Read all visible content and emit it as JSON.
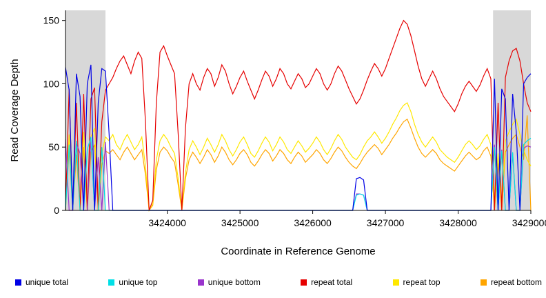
{
  "chart_data": {
    "type": "line",
    "title": "",
    "xlabel": "Coordinate in Reference Genome",
    "ylabel": "Read Coverage Depth",
    "xlim": [
      3422600,
      3429000
    ],
    "ylim": [
      0,
      158
    ],
    "grid": false,
    "legend_position": "bottom",
    "x_ticks": [
      {
        "value": 3424000,
        "label": "3424000"
      },
      {
        "value": 3425000,
        "label": "3425000"
      },
      {
        "value": 3426000,
        "label": "3426000"
      },
      {
        "value": 3427000,
        "label": "3427000"
      },
      {
        "value": 3428000,
        "label": "3428000"
      },
      {
        "value": 3429000,
        "label": "3429000"
      }
    ],
    "y_ticks": [
      {
        "value": 0,
        "label": "0"
      },
      {
        "value": 50,
        "label": "50"
      },
      {
        "value": 100,
        "label": "100"
      },
      {
        "value": 150,
        "label": "150"
      }
    ],
    "highlight_regions": [
      {
        "x0": 3422600,
        "x1": 3423150,
        "color": "#d8d8d8"
      },
      {
        "x0": 3428480,
        "x1": 3429000,
        "color": "#d8d8d8"
      }
    ],
    "x_start": 3422600,
    "x_step": 50,
    "draw_order": [
      5,
      4,
      3,
      2,
      1,
      0
    ],
    "series": [
      {
        "name": "unique total",
        "color": "#0000e6",
        "values": [
          113,
          95,
          0,
          108,
          90,
          0,
          100,
          115,
          0,
          85,
          112,
          110,
          60,
          0,
          0,
          0,
          0,
          0,
          0,
          0,
          0,
          0,
          0,
          0,
          0,
          0,
          0,
          0,
          0,
          0,
          0,
          0,
          0,
          0,
          0,
          0,
          0,
          0,
          0,
          0,
          0,
          0,
          0,
          0,
          0,
          0,
          0,
          0,
          0,
          0,
          0,
          0,
          0,
          0,
          0,
          0,
          0,
          0,
          0,
          0,
          0,
          0,
          0,
          0,
          0,
          0,
          0,
          0,
          0,
          0,
          0,
          0,
          0,
          0,
          0,
          0,
          0,
          0,
          0,
          0,
          25,
          26,
          24,
          0,
          0,
          0,
          0,
          0,
          0,
          0,
          0,
          0,
          0,
          0,
          0,
          0,
          0,
          0,
          0,
          0,
          0,
          0,
          0,
          0,
          0,
          0,
          0,
          0,
          0,
          0,
          0,
          0,
          0,
          0,
          0,
          0,
          0,
          0,
          104,
          0,
          96,
          88,
          0,
          92,
          62,
          0,
          100,
          105,
          108
        ]
      },
      {
        "name": "unique top",
        "color": "#00dfe6",
        "values": [
          0,
          52,
          0,
          55,
          0,
          0,
          48,
          58,
          0,
          0,
          50,
          0,
          0,
          0,
          0,
          0,
          0,
          0,
          0,
          0,
          0,
          0,
          0,
          0,
          0,
          0,
          0,
          0,
          0,
          0,
          0,
          0,
          0,
          0,
          0,
          0,
          0,
          0,
          0,
          0,
          0,
          0,
          0,
          0,
          0,
          0,
          0,
          0,
          0,
          0,
          0,
          0,
          0,
          0,
          0,
          0,
          0,
          0,
          0,
          0,
          0,
          0,
          0,
          0,
          0,
          0,
          0,
          0,
          0,
          0,
          0,
          0,
          0,
          0,
          0,
          0,
          0,
          0,
          0,
          0,
          12,
          13,
          12,
          0,
          0,
          0,
          0,
          0,
          0,
          0,
          0,
          0,
          0,
          0,
          0,
          0,
          0,
          0,
          0,
          0,
          0,
          0,
          0,
          0,
          0,
          0,
          0,
          0,
          0,
          0,
          0,
          0,
          0,
          0,
          0,
          0,
          0,
          0,
          50,
          0,
          47,
          0,
          0,
          46,
          0,
          0,
          52,
          55,
          57
        ]
      },
      {
        "name": "unique bottom",
        "color": "#9933cc",
        "values": [
          56,
          0,
          0,
          53,
          45,
          0,
          0,
          56,
          0,
          42,
          0,
          54,
          0,
          0,
          0,
          0,
          0,
          0,
          0,
          0,
          0,
          0,
          0,
          0,
          0,
          0,
          0,
          0,
          0,
          0,
          0,
          0,
          0,
          0,
          0,
          0,
          0,
          0,
          0,
          0,
          0,
          0,
          0,
          0,
          0,
          0,
          0,
          0,
          0,
          0,
          0,
          0,
          0,
          0,
          0,
          0,
          0,
          0,
          0,
          0,
          0,
          0,
          0,
          0,
          0,
          0,
          0,
          0,
          0,
          0,
          0,
          0,
          0,
          0,
          0,
          0,
          0,
          0,
          0,
          0,
          13,
          13,
          12,
          0,
          0,
          0,
          0,
          0,
          0,
          0,
          0,
          0,
          0,
          0,
          0,
          0,
          0,
          0,
          0,
          0,
          0,
          0,
          0,
          0,
          0,
          0,
          0,
          0,
          0,
          0,
          0,
          0,
          0,
          0,
          0,
          0,
          0,
          0,
          52,
          0,
          48,
          0,
          0,
          45,
          0,
          0,
          49,
          51,
          50
        ]
      },
      {
        "name": "repeat total",
        "color": "#e60000",
        "values": [
          0,
          96,
          0,
          85,
          0,
          92,
          0,
          88,
          97,
          0,
          70,
          95,
          100,
          105,
          112,
          118,
          122,
          115,
          108,
          118,
          125,
          120,
          70,
          0,
          8,
          85,
          125,
          130,
          122,
          115,
          108,
          60,
          0,
          65,
          100,
          108,
          100,
          95,
          105,
          112,
          108,
          98,
          105,
          115,
          110,
          100,
          92,
          98,
          105,
          110,
          102,
          95,
          88,
          95,
          103,
          110,
          106,
          98,
          104,
          112,
          108,
          100,
          96,
          102,
          108,
          104,
          97,
          100,
          106,
          112,
          108,
          100,
          95,
          100,
          108,
          114,
          110,
          103,
          96,
          90,
          84,
          88,
          95,
          103,
          110,
          116,
          112,
          106,
          112,
          120,
          128,
          136,
          144,
          150,
          147,
          138,
          126,
          114,
          104,
          98,
          104,
          110,
          104,
          96,
          90,
          86,
          82,
          78,
          84,
          92,
          98,
          102,
          98,
          94,
          99,
          106,
          112,
          104,
          0,
          85,
          0,
          105,
          118,
          126,
          128,
          118,
          100,
          85,
          78
        ]
      },
      {
        "name": "repeat top",
        "color": "#ffe800",
        "values": [
          0,
          60,
          0,
          55,
          0,
          62,
          0,
          58,
          65,
          0,
          45,
          58,
          55,
          60,
          52,
          48,
          55,
          60,
          54,
          48,
          52,
          58,
          35,
          0,
          5,
          40,
          55,
          60,
          56,
          50,
          45,
          25,
          0,
          30,
          48,
          55,
          50,
          44,
          50,
          57,
          52,
          46,
          52,
          60,
          55,
          48,
          43,
          48,
          54,
          58,
          52,
          45,
          42,
          47,
          53,
          58,
          54,
          47,
          52,
          58,
          54,
          48,
          45,
          50,
          55,
          51,
          46,
          49,
          53,
          58,
          54,
          48,
          44,
          49,
          55,
          60,
          56,
          50,
          46,
          42,
          40,
          44,
          50,
          55,
          58,
          62,
          58,
          53,
          57,
          62,
          68,
          73,
          79,
          83,
          85,
          78,
          68,
          60,
          54,
          50,
          54,
          58,
          54,
          48,
          45,
          42,
          40,
          38,
          42,
          47,
          52,
          55,
          52,
          48,
          51,
          56,
          60,
          52,
          0,
          45,
          0,
          55,
          62,
          68,
          72,
          60,
          48,
          40,
          35
        ]
      },
      {
        "name": "repeat bottom",
        "color": "#ffa500",
        "values": [
          0,
          48,
          0,
          44,
          0,
          50,
          0,
          46,
          52,
          0,
          36,
          47,
          45,
          48,
          44,
          40,
          46,
          50,
          45,
          40,
          44,
          48,
          28,
          0,
          4,
          32,
          46,
          50,
          47,
          42,
          38,
          20,
          0,
          25,
          40,
          46,
          42,
          37,
          42,
          48,
          44,
          38,
          43,
          50,
          46,
          40,
          36,
          40,
          45,
          48,
          44,
          38,
          35,
          39,
          44,
          48,
          45,
          39,
          43,
          48,
          45,
          40,
          37,
          42,
          46,
          43,
          38,
          41,
          44,
          48,
          45,
          40,
          37,
          41,
          46,
          50,
          47,
          42,
          38,
          35,
          33,
          37,
          42,
          46,
          49,
          52,
          49,
          44,
          48,
          52,
          57,
          61,
          66,
          70,
          72,
          65,
          57,
          50,
          45,
          42,
          45,
          48,
          45,
          40,
          37,
          35,
          33,
          31,
          35,
          39,
          43,
          46,
          43,
          40,
          42,
          47,
          50,
          43,
          0,
          37,
          0,
          46,
          52,
          57,
          60,
          50,
          40,
          75,
          0
        ]
      }
    ]
  }
}
